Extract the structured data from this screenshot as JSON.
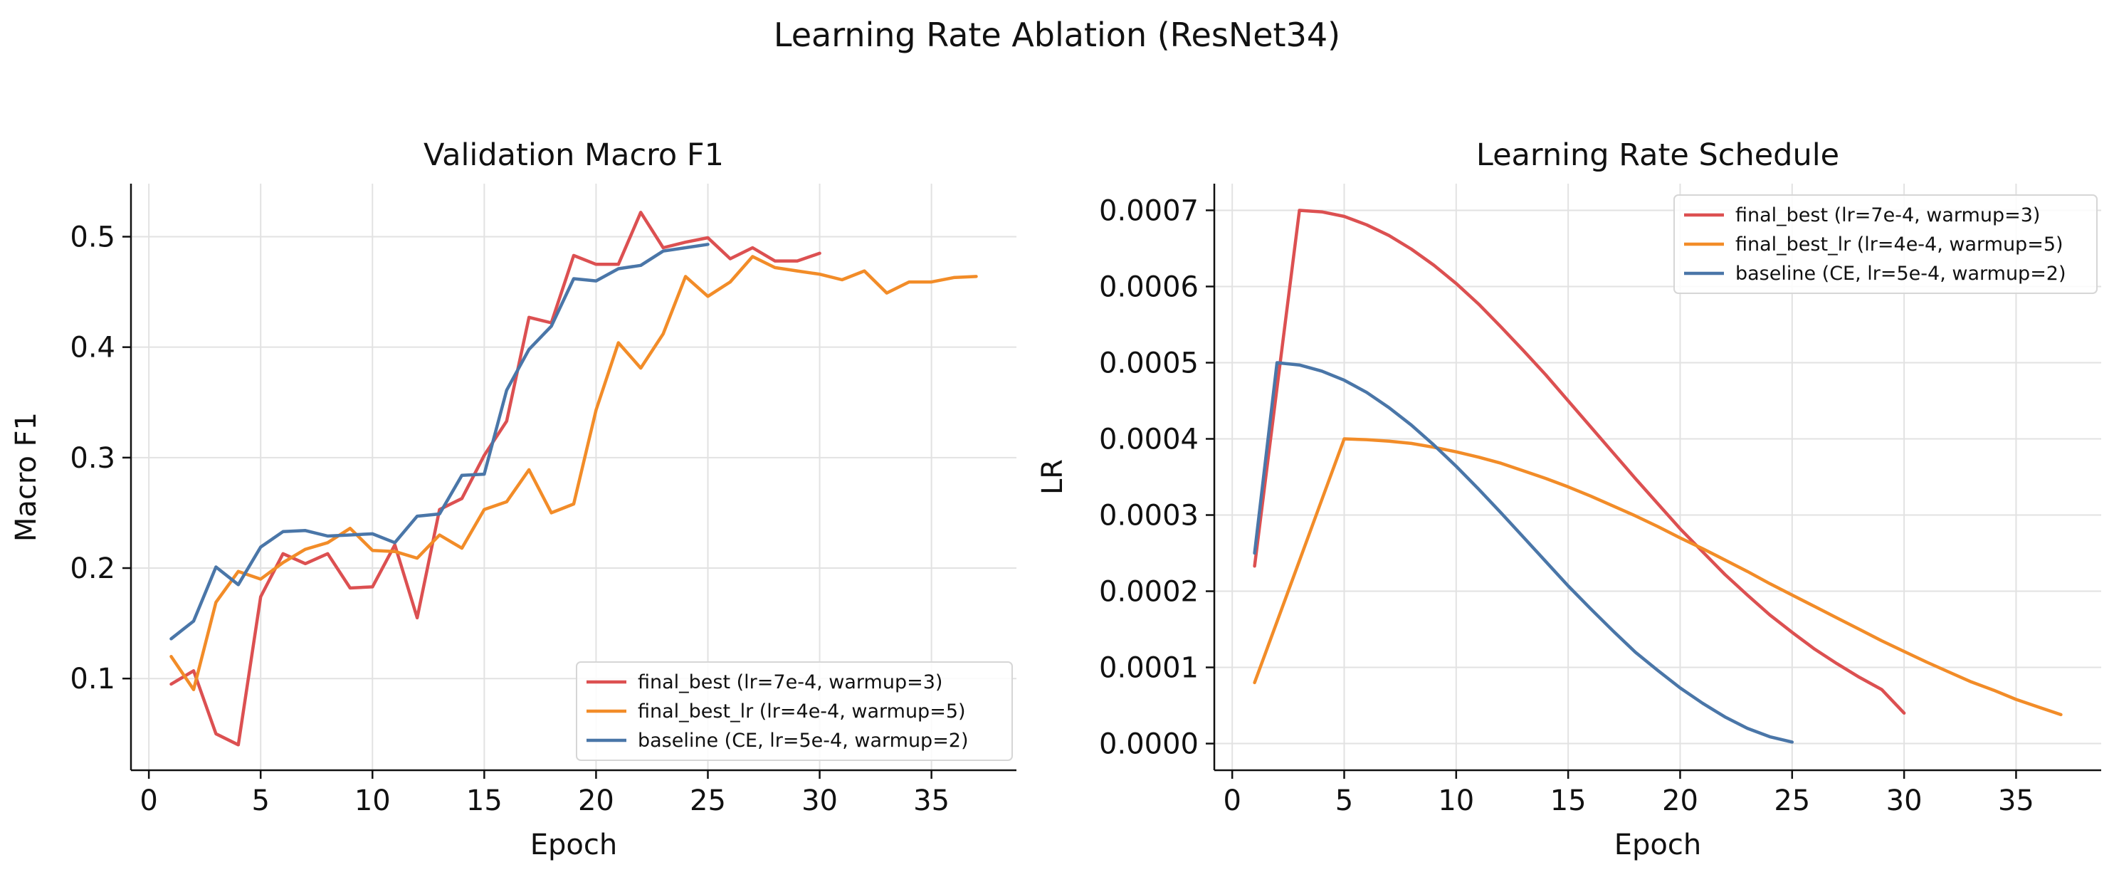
{
  "suptitle": "Learning Rate Ablation (ResNet34)",
  "colors": {
    "red": "#dc5051",
    "orange": "#f28c28",
    "blue": "#4a76a8"
  },
  "chart_data": [
    {
      "type": "line",
      "title": "Validation Macro F1",
      "xlabel": "Epoch",
      "ylabel": "Macro F1",
      "xlim": [
        -0.8,
        38.8
      ],
      "ylim": [
        0.017,
        0.548
      ],
      "xticks": [
        0,
        5,
        10,
        15,
        20,
        25,
        30,
        35
      ],
      "xtick_labels": [
        "0",
        "5",
        "10",
        "15",
        "20",
        "25",
        "30",
        "35"
      ],
      "yticks": [
        0.1,
        0.2,
        0.3,
        0.4,
        0.5
      ],
      "ytick_labels": [
        "0.1",
        "0.2",
        "0.3",
        "0.4",
        "0.5"
      ],
      "grid": true,
      "legend_position": "lower right",
      "series": [
        {
          "name": "final_best (lr=7e-4, warmup=3)",
          "color": "#dc5051",
          "x": [
            1,
            2,
            3,
            4,
            5,
            6,
            7,
            8,
            9,
            10,
            11,
            12,
            13,
            14,
            15,
            16,
            17,
            18,
            19,
            20,
            21,
            22,
            23,
            24,
            25,
            26,
            27,
            28,
            29,
            30
          ],
          "y": [
            0.095,
            0.107,
            0.05,
            0.04,
            0.174,
            0.213,
            0.204,
            0.213,
            0.182,
            0.183,
            0.221,
            0.155,
            0.253,
            0.263,
            0.302,
            0.333,
            0.427,
            0.422,
            0.483,
            0.475,
            0.475,
            0.522,
            0.49,
            0.495,
            0.499,
            0.48,
            0.49,
            0.478,
            0.478,
            0.485
          ]
        },
        {
          "name": "final_best_lr (lr=4e-4, warmup=5)",
          "color": "#f28c28",
          "x": [
            1,
            2,
            3,
            4,
            5,
            6,
            7,
            8,
            9,
            10,
            11,
            12,
            13,
            14,
            15,
            16,
            17,
            18,
            19,
            20,
            21,
            22,
            23,
            24,
            25,
            26,
            27,
            28,
            29,
            30,
            31,
            32,
            33,
            34,
            35,
            36,
            37
          ],
          "y": [
            0.12,
            0.09,
            0.169,
            0.197,
            0.19,
            0.205,
            0.217,
            0.223,
            0.236,
            0.216,
            0.215,
            0.209,
            0.23,
            0.218,
            0.253,
            0.26,
            0.289,
            0.25,
            0.258,
            0.343,
            0.404,
            0.381,
            0.412,
            0.464,
            0.446,
            0.459,
            0.482,
            0.472,
            0.469,
            0.466,
            0.461,
            0.469,
            0.449,
            0.459,
            0.459,
            0.463,
            0.464
          ]
        },
        {
          "name": "baseline (CE, lr=5e-4, warmup=2)",
          "color": "#4a76a8",
          "x": [
            1,
            2,
            3,
            4,
            5,
            6,
            7,
            8,
            9,
            10,
            11,
            12,
            13,
            14,
            15,
            16,
            17,
            18,
            19,
            20,
            21,
            22,
            23,
            24,
            25
          ],
          "y": [
            0.136,
            0.152,
            0.201,
            0.185,
            0.219,
            0.233,
            0.234,
            0.229,
            0.23,
            0.231,
            0.223,
            0.247,
            0.249,
            0.284,
            0.285,
            0.361,
            0.398,
            0.419,
            0.462,
            0.46,
            0.471,
            0.474,
            0.487,
            0.49,
            0.493
          ]
        }
      ]
    },
    {
      "type": "line",
      "title": "Learning Rate Schedule",
      "xlabel": "Epoch",
      "ylabel": "LR",
      "xlim": [
        -0.8,
        38.8
      ],
      "ylim": [
        -3.5e-05,
        0.000735
      ],
      "xticks": [
        0,
        5,
        10,
        15,
        20,
        25,
        30,
        35
      ],
      "xtick_labels": [
        "0",
        "5",
        "10",
        "15",
        "20",
        "25",
        "30",
        "35"
      ],
      "yticks": [
        0.0,
        0.0001,
        0.0002,
        0.0003,
        0.0004,
        0.0005,
        0.0006,
        0.0007
      ],
      "ytick_labels": [
        "0.0000",
        "0.0001",
        "0.0002",
        "0.0003",
        "0.0004",
        "0.0005",
        "0.0006",
        "0.0007"
      ],
      "grid": true,
      "legend_position": "upper right",
      "series": [
        {
          "name": "final_best (lr=7e-4, warmup=3)",
          "color": "#dc5051",
          "x": [
            1,
            2,
            3,
            4,
            5,
            6,
            7,
            8,
            9,
            10,
            11,
            12,
            13,
            14,
            15,
            16,
            17,
            18,
            19,
            20,
            21,
            22,
            23,
            24,
            25,
            26,
            27,
            28,
            29,
            30
          ],
          "y": [
            0.000233,
            0.000467,
            0.0007,
            0.000698,
            0.000692,
            0.000681,
            0.000667,
            0.000649,
            0.000628,
            0.000604,
            0.000577,
            0.000547,
            0.000516,
            0.000484,
            0.00045,
            0.000416,
            0.000382,
            0.000348,
            0.000315,
            0.000282,
            0.000252,
            0.000222,
            0.000195,
            0.000169,
            0.000146,
            0.000124,
            0.000105,
            8.7e-05,
            7.1e-05,
            4e-05
          ]
        },
        {
          "name": "final_best_lr (lr=4e-4, warmup=5)",
          "color": "#f28c28",
          "x": [
            1,
            2,
            3,
            4,
            5,
            6,
            7,
            8,
            9,
            10,
            11,
            12,
            13,
            14,
            15,
            16,
            17,
            18,
            19,
            20,
            21,
            22,
            23,
            24,
            25,
            26,
            27,
            28,
            29,
            30,
            31,
            32,
            33,
            34,
            35,
            36,
            37
          ],
          "y": [
            8e-05,
            0.00016,
            0.00024,
            0.00032,
            0.0004,
            0.000399,
            0.000397,
            0.000394,
            0.000389,
            0.000383,
            0.000376,
            0.000368,
            0.000358,
            0.000348,
            0.000337,
            0.000325,
            0.000312,
            0.000299,
            0.000285,
            0.00027,
            0.000256,
            0.000241,
            0.000226,
            0.00021,
            0.000195,
            0.00018,
            0.000165,
            0.00015,
            0.000135,
            0.000121,
            0.000107,
            9.4e-05,
            8.1e-05,
            7e-05,
            5.8e-05,
            4.8e-05,
            3.8e-05
          ]
        },
        {
          "name": "baseline (CE, lr=5e-4, warmup=2)",
          "color": "#4a76a8",
          "x": [
            1,
            2,
            3,
            4,
            5,
            6,
            7,
            8,
            9,
            10,
            11,
            12,
            13,
            14,
            15,
            16,
            17,
            18,
            19,
            20,
            21,
            22,
            23,
            24,
            25
          ],
          "y": [
            0.00025,
            0.0005,
            0.000497,
            0.000489,
            0.000477,
            0.000461,
            0.000441,
            0.000418,
            0.000392,
            0.000364,
            0.000334,
            0.000303,
            0.000271,
            0.000239,
            0.000207,
            0.000177,
            0.000148,
            0.00012,
            9.6e-05,
            7.3e-05,
            5.3e-05,
            3.5e-05,
            2e-05,
            9e-06,
            2e-06
          ]
        }
      ]
    }
  ]
}
